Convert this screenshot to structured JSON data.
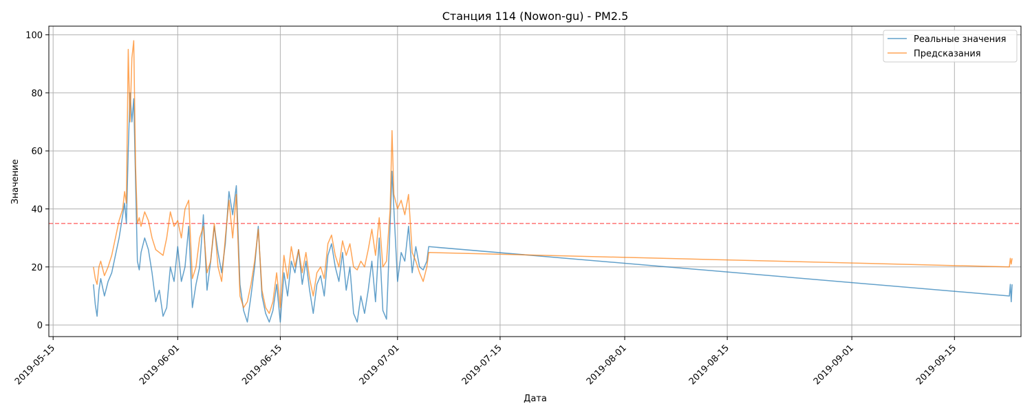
{
  "chart_data": {
    "type": "line",
    "title": "Станция 114 (Nowon-gu) - PM2.5",
    "xlabel": "Дата",
    "ylabel": "Значение",
    "x_range": [
      "2019-05-14T10:00",
      "2019-09-24T02:00"
    ],
    "ylim": [
      -4,
      103
    ],
    "x_ticks": [
      "2019-05-15",
      "2019-06-01",
      "2019-06-15",
      "2019-07-01",
      "2019-07-15",
      "2019-08-01",
      "2019-08-15",
      "2019-09-01",
      "2019-09-15"
    ],
    "y_ticks": [
      0,
      20,
      40,
      60,
      80,
      100
    ],
    "grid": true,
    "legend_position": "top-right",
    "threshold": {
      "value": 35,
      "color": "#ff0000",
      "style": "dashed"
    },
    "series": [
      {
        "name": "Реальные значения",
        "color": "#1f77b4",
        "points": [
          [
            "2019-05-20T12:00",
            14
          ],
          [
            "2019-05-20T18:00",
            7
          ],
          [
            "2019-05-21T00:00",
            3
          ],
          [
            "2019-05-21T06:00",
            12
          ],
          [
            "2019-05-21T12:00",
            16
          ],
          [
            "2019-05-22T00:00",
            10
          ],
          [
            "2019-05-22T12:00",
            15
          ],
          [
            "2019-05-23T00:00",
            18
          ],
          [
            "2019-05-24T00:00",
            30
          ],
          [
            "2019-05-24T12:00",
            38
          ],
          [
            "2019-05-24T18:00",
            42
          ],
          [
            "2019-05-25T00:00",
            35
          ],
          [
            "2019-05-25T06:00",
            60
          ],
          [
            "2019-05-25T12:00",
            80
          ],
          [
            "2019-05-25T18:00",
            70
          ],
          [
            "2019-05-26T00:00",
            78
          ],
          [
            "2019-05-26T06:00",
            50
          ],
          [
            "2019-05-26T12:00",
            22
          ],
          [
            "2019-05-26T18:00",
            19
          ],
          [
            "2019-05-27T00:00",
            25
          ],
          [
            "2019-05-27T12:00",
            30
          ],
          [
            "2019-05-28T00:00",
            26
          ],
          [
            "2019-05-28T12:00",
            18
          ],
          [
            "2019-05-29T00:00",
            8
          ],
          [
            "2019-05-29T12:00",
            12
          ],
          [
            "2019-05-30T00:00",
            3
          ],
          [
            "2019-05-30T12:00",
            6
          ],
          [
            "2019-05-31T00:00",
            20
          ],
          [
            "2019-05-31T12:00",
            15
          ],
          [
            "2019-06-01T00:00",
            27
          ],
          [
            "2019-06-01T12:00",
            15
          ],
          [
            "2019-06-02T00:00",
            20
          ],
          [
            "2019-06-02T12:00",
            34
          ],
          [
            "2019-06-03T00:00",
            6
          ],
          [
            "2019-06-03T12:00",
            14
          ],
          [
            "2019-06-04T00:00",
            20
          ],
          [
            "2019-06-04T12:00",
            38
          ],
          [
            "2019-06-05T00:00",
            12
          ],
          [
            "2019-06-05T12:00",
            22
          ],
          [
            "2019-06-06T00:00",
            34
          ],
          [
            "2019-06-06T12:00",
            25
          ],
          [
            "2019-06-07T00:00",
            18
          ],
          [
            "2019-06-07T12:00",
            28
          ],
          [
            "2019-06-08T00:00",
            46
          ],
          [
            "2019-06-08T12:00",
            38
          ],
          [
            "2019-06-09T00:00",
            48
          ],
          [
            "2019-06-09T12:00",
            14
          ],
          [
            "2019-06-10T00:00",
            5
          ],
          [
            "2019-06-10T12:00",
            1
          ],
          [
            "2019-06-11T00:00",
            10
          ],
          [
            "2019-06-11T12:00",
            20
          ],
          [
            "2019-06-12T00:00",
            34
          ],
          [
            "2019-06-12T12:00",
            10
          ],
          [
            "2019-06-13T00:00",
            4
          ],
          [
            "2019-06-13T12:00",
            1
          ],
          [
            "2019-06-14T00:00",
            5
          ],
          [
            "2019-06-14T12:00",
            14
          ],
          [
            "2019-06-15T00:00",
            1
          ],
          [
            "2019-06-15T12:00",
            18
          ],
          [
            "2019-06-16T00:00",
            10
          ],
          [
            "2019-06-16T12:00",
            22
          ],
          [
            "2019-06-17T00:00",
            18
          ],
          [
            "2019-06-17T12:00",
            26
          ],
          [
            "2019-06-18T00:00",
            14
          ],
          [
            "2019-06-18T12:00",
            22
          ],
          [
            "2019-06-19T00:00",
            12
          ],
          [
            "2019-06-19T12:00",
            4
          ],
          [
            "2019-06-20T00:00",
            14
          ],
          [
            "2019-06-20T12:00",
            17
          ],
          [
            "2019-06-21T00:00",
            10
          ],
          [
            "2019-06-21T12:00",
            24
          ],
          [
            "2019-06-22T00:00",
            28
          ],
          [
            "2019-06-22T12:00",
            20
          ],
          [
            "2019-06-23T00:00",
            15
          ],
          [
            "2019-06-23T12:00",
            25
          ],
          [
            "2019-06-24T00:00",
            12
          ],
          [
            "2019-06-24T12:00",
            20
          ],
          [
            "2019-06-25T00:00",
            4
          ],
          [
            "2019-06-25T12:00",
            1
          ],
          [
            "2019-06-26T00:00",
            10
          ],
          [
            "2019-06-26T12:00",
            4
          ],
          [
            "2019-06-27T00:00",
            12
          ],
          [
            "2019-06-27T12:00",
            22
          ],
          [
            "2019-06-28T00:00",
            8
          ],
          [
            "2019-06-28T12:00",
            30
          ],
          [
            "2019-06-29T00:00",
            5
          ],
          [
            "2019-06-29T12:00",
            2
          ],
          [
            "2019-06-30T00:00",
            35
          ],
          [
            "2019-06-30T06:00",
            53
          ],
          [
            "2019-06-30T12:00",
            40
          ],
          [
            "2019-07-01T00:00",
            15
          ],
          [
            "2019-07-01T12:00",
            25
          ],
          [
            "2019-07-02T00:00",
            22
          ],
          [
            "2019-07-02T12:00",
            34
          ],
          [
            "2019-07-03T00:00",
            18
          ],
          [
            "2019-07-03T12:00",
            27
          ],
          [
            "2019-07-04T00:00",
            20
          ],
          [
            "2019-07-04T12:00",
            19
          ],
          [
            "2019-07-05T00:00",
            22
          ],
          [
            "2019-07-05T06:00",
            27
          ],
          [
            "2019-09-22T12:00",
            10
          ],
          [
            "2019-09-22T15:00",
            14
          ],
          [
            "2019-09-22T18:00",
            8
          ],
          [
            "2019-09-22T21:00",
            14
          ]
        ]
      },
      {
        "name": "Предсказания",
        "color": "#ff7f0e",
        "points": [
          [
            "2019-05-20T12:00",
            20
          ],
          [
            "2019-05-20T18:00",
            16
          ],
          [
            "2019-05-21T00:00",
            14
          ],
          [
            "2019-05-21T06:00",
            20
          ],
          [
            "2019-05-21T12:00",
            22
          ],
          [
            "2019-05-22T00:00",
            17
          ],
          [
            "2019-05-22T12:00",
            20
          ],
          [
            "2019-05-23T00:00",
            24
          ],
          [
            "2019-05-24T00:00",
            36
          ],
          [
            "2019-05-24T12:00",
            40
          ],
          [
            "2019-05-24T18:00",
            46
          ],
          [
            "2019-05-25T00:00",
            42
          ],
          [
            "2019-05-25T06:00",
            95
          ],
          [
            "2019-05-25T12:00",
            70
          ],
          [
            "2019-05-25T18:00",
            92
          ],
          [
            "2019-05-26T00:00",
            98
          ],
          [
            "2019-05-26T06:00",
            55
          ],
          [
            "2019-05-26T12:00",
            35
          ],
          [
            "2019-05-26T18:00",
            37
          ],
          [
            "2019-05-27T00:00",
            34
          ],
          [
            "2019-05-27T12:00",
            39
          ],
          [
            "2019-05-28T00:00",
            36
          ],
          [
            "2019-05-28T12:00",
            30
          ],
          [
            "2019-05-29T00:00",
            26
          ],
          [
            "2019-05-29T12:00",
            25
          ],
          [
            "2019-05-30T00:00",
            24
          ],
          [
            "2019-05-30T12:00",
            30
          ],
          [
            "2019-05-31T00:00",
            39
          ],
          [
            "2019-05-31T12:00",
            34
          ],
          [
            "2019-06-01T00:00",
            36
          ],
          [
            "2019-06-01T12:00",
            30
          ],
          [
            "2019-06-02T00:00",
            40
          ],
          [
            "2019-06-02T12:00",
            43
          ],
          [
            "2019-06-03T00:00",
            16
          ],
          [
            "2019-06-03T12:00",
            20
          ],
          [
            "2019-06-04T00:00",
            30
          ],
          [
            "2019-06-04T12:00",
            34
          ],
          [
            "2019-06-05T00:00",
            18
          ],
          [
            "2019-06-05T12:00",
            22
          ],
          [
            "2019-06-06T00:00",
            35
          ],
          [
            "2019-06-06T12:00",
            20
          ],
          [
            "2019-06-07T00:00",
            15
          ],
          [
            "2019-06-07T12:00",
            30
          ],
          [
            "2019-06-08T00:00",
            43
          ],
          [
            "2019-06-08T12:00",
            30
          ],
          [
            "2019-06-09T00:00",
            45
          ],
          [
            "2019-06-09T12:00",
            10
          ],
          [
            "2019-06-10T00:00",
            6
          ],
          [
            "2019-06-10T12:00",
            8
          ],
          [
            "2019-06-11T00:00",
            14
          ],
          [
            "2019-06-11T12:00",
            22
          ],
          [
            "2019-06-12T00:00",
            33
          ],
          [
            "2019-06-12T12:00",
            12
          ],
          [
            "2019-06-13T00:00",
            6
          ],
          [
            "2019-06-13T12:00",
            4
          ],
          [
            "2019-06-14T00:00",
            8
          ],
          [
            "2019-06-14T12:00",
            18
          ],
          [
            "2019-06-15T00:00",
            6
          ],
          [
            "2019-06-15T12:00",
            24
          ],
          [
            "2019-06-16T00:00",
            16
          ],
          [
            "2019-06-16T12:00",
            27
          ],
          [
            "2019-06-17T00:00",
            20
          ],
          [
            "2019-06-17T12:00",
            26
          ],
          [
            "2019-06-18T00:00",
            18
          ],
          [
            "2019-06-18T12:00",
            25
          ],
          [
            "2019-06-19T00:00",
            16
          ],
          [
            "2019-06-19T12:00",
            10
          ],
          [
            "2019-06-20T00:00",
            18
          ],
          [
            "2019-06-20T12:00",
            20
          ],
          [
            "2019-06-21T00:00",
            16
          ],
          [
            "2019-06-21T12:00",
            28
          ],
          [
            "2019-06-22T00:00",
            31
          ],
          [
            "2019-06-22T12:00",
            24
          ],
          [
            "2019-06-23T00:00",
            20
          ],
          [
            "2019-06-23T12:00",
            29
          ],
          [
            "2019-06-24T00:00",
            24
          ],
          [
            "2019-06-24T12:00",
            28
          ],
          [
            "2019-06-25T00:00",
            20
          ],
          [
            "2019-06-25T12:00",
            19
          ],
          [
            "2019-06-26T00:00",
            22
          ],
          [
            "2019-06-26T12:00",
            20
          ],
          [
            "2019-06-27T00:00",
            26
          ],
          [
            "2019-06-27T12:00",
            33
          ],
          [
            "2019-06-28T00:00",
            24
          ],
          [
            "2019-06-28T12:00",
            37
          ],
          [
            "2019-06-29T00:00",
            20
          ],
          [
            "2019-06-29T12:00",
            22
          ],
          [
            "2019-06-30T00:00",
            40
          ],
          [
            "2019-06-30T06:00",
            67
          ],
          [
            "2019-06-30T12:00",
            45
          ],
          [
            "2019-07-01T00:00",
            40
          ],
          [
            "2019-07-01T12:00",
            43
          ],
          [
            "2019-07-02T00:00",
            38
          ],
          [
            "2019-07-02T12:00",
            45
          ],
          [
            "2019-07-03T00:00",
            25
          ],
          [
            "2019-07-03T12:00",
            22
          ],
          [
            "2019-07-04T00:00",
            18
          ],
          [
            "2019-07-04T12:00",
            15
          ],
          [
            "2019-07-05T00:00",
            20
          ],
          [
            "2019-07-05T06:00",
            25
          ],
          [
            "2019-09-22T12:00",
            20
          ],
          [
            "2019-09-22T15:00",
            23
          ],
          [
            "2019-09-22T18:00",
            21
          ],
          [
            "2019-09-22T21:00",
            23
          ]
        ]
      }
    ]
  }
}
